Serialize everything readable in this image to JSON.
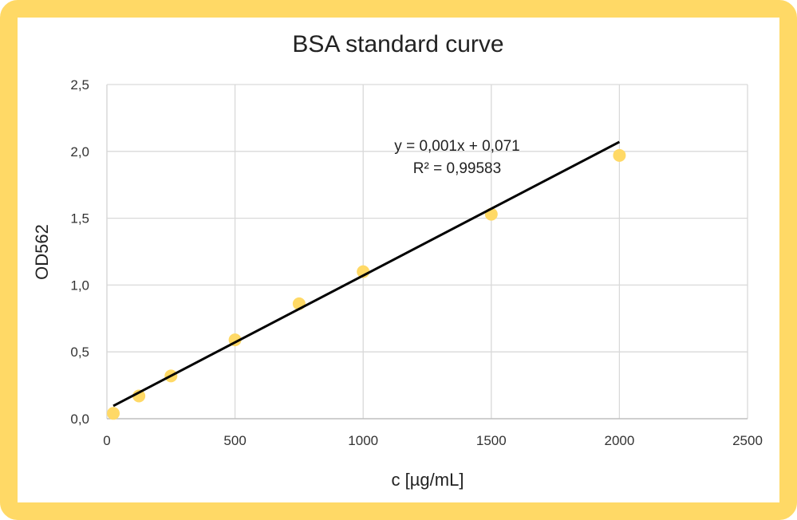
{
  "chart_data": {
    "type": "scatter",
    "title": "BSA standard curve",
    "xlabel": "c [µg/mL]",
    "ylabel": "OD562",
    "xlim": [
      0,
      2500
    ],
    "ylim": [
      0,
      2.5
    ],
    "x_ticks": [
      "0",
      "500",
      "1000",
      "1500",
      "2000",
      "2500"
    ],
    "y_ticks": [
      "0,0",
      "0,5",
      "1,0",
      "1,5",
      "2,0",
      "2,5"
    ],
    "x_tick_values": [
      0,
      500,
      1000,
      1500,
      2000,
      2500
    ],
    "y_tick_values": [
      0,
      0.5,
      1.0,
      1.5,
      2.0,
      2.5
    ],
    "grid": true,
    "points": [
      {
        "x": 25,
        "y": 0.04
      },
      {
        "x": 125,
        "y": 0.17
      },
      {
        "x": 250,
        "y": 0.32
      },
      {
        "x": 500,
        "y": 0.59
      },
      {
        "x": 750,
        "y": 0.86
      },
      {
        "x": 1000,
        "y": 1.1
      },
      {
        "x": 1500,
        "y": 1.53
      },
      {
        "x": 2000,
        "y": 1.97
      }
    ],
    "trendline": {
      "type": "linear",
      "slope": 0.001,
      "intercept": 0.071,
      "x_range": [
        25,
        2000
      ],
      "equation": "y = 0,001x + 0,071",
      "r_squared": "R² = 0,99583"
    },
    "colors": {
      "marker": "#ffd966",
      "trendline": "#000000",
      "grid": "#d9d9d9",
      "frame": "#ffd966"
    }
  }
}
